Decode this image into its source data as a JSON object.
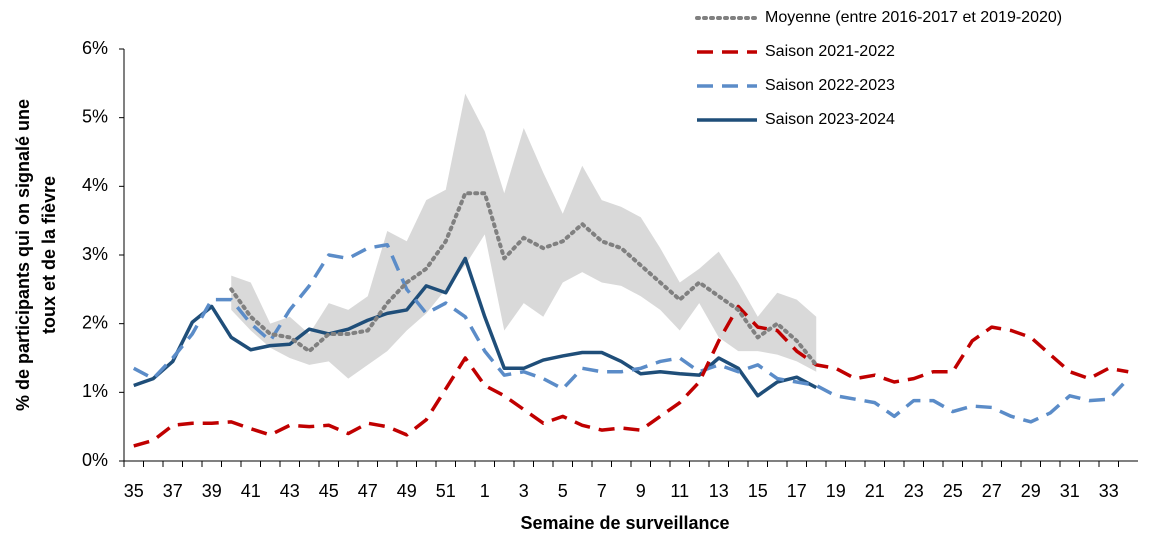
{
  "chart_data": {
    "type": "line",
    "ylabel": [
      "% de participants qui on signalé une",
      "toux et de la fièvre"
    ],
    "xlabel": "Semaine de surveillance",
    "categories": [
      "35",
      null,
      "37",
      null,
      "39",
      null,
      "41",
      null,
      "43",
      null,
      "45",
      null,
      "47",
      null,
      "49",
      null,
      "51",
      null,
      "1",
      null,
      "3",
      null,
      "5",
      null,
      "7",
      null,
      "9",
      null,
      "11",
      null,
      "13",
      null,
      "15",
      null,
      "17",
      null,
      "19",
      null,
      "21",
      null,
      "23",
      null,
      "25",
      null,
      "27",
      null,
      "29",
      null,
      "31",
      null,
      "33",
      null
    ],
    "ylim": [
      0,
      6
    ],
    "yticks": [
      {
        "value": 0,
        "label": "0%"
      },
      {
        "value": 1,
        "label": "1%"
      },
      {
        "value": 2,
        "label": "2%"
      },
      {
        "value": 3,
        "label": "3%"
      },
      {
        "value": 4,
        "label": "4%"
      },
      {
        "value": 5,
        "label": "5%"
      },
      {
        "value": 6,
        "label": "6%"
      }
    ],
    "range": {
      "color": "#d9d9d9",
      "high": [
        null,
        null,
        null,
        null,
        null,
        2.7,
        2.6,
        2.0,
        2.1,
        1.85,
        2.3,
        2.2,
        2.4,
        3.35,
        3.2,
        3.8,
        3.95,
        5.35,
        4.8,
        3.9,
        4.85,
        4.2,
        3.6,
        4.3,
        3.8,
        3.7,
        3.55,
        3.1,
        2.6,
        2.8,
        3.05,
        2.6,
        2.1,
        2.45,
        2.35,
        2.1,
        null,
        null,
        null,
        null,
        null,
        null,
        null,
        null,
        null,
        null,
        null,
        null,
        null,
        null,
        null,
        null
      ],
      "low": [
        null,
        null,
        null,
        null,
        null,
        2.2,
        1.9,
        1.65,
        1.5,
        1.4,
        1.45,
        1.2,
        1.4,
        1.6,
        1.9,
        2.15,
        2.5,
        2.85,
        3.3,
        1.9,
        2.3,
        2.1,
        2.6,
        2.75,
        2.6,
        2.55,
        2.4,
        2.2,
        1.9,
        2.3,
        1.8,
        1.6,
        1.6,
        1.55,
        1.45,
        1.3,
        null,
        null,
        null,
        null,
        null,
        null,
        null,
        null,
        null,
        null,
        null,
        null,
        null,
        null,
        null,
        null
      ]
    },
    "series": [
      {
        "name": "Moyenne (entre 2016-2017 et 2019-2020)",
        "color": "#808080",
        "line_style": "dotted",
        "values": [
          null,
          null,
          null,
          null,
          null,
          2.5,
          2.1,
          1.85,
          1.8,
          1.6,
          1.85,
          1.85,
          1.9,
          2.3,
          2.6,
          2.8,
          3.2,
          3.9,
          3.9,
          2.95,
          3.25,
          3.1,
          3.2,
          3.45,
          3.2,
          3.1,
          2.85,
          2.6,
          2.35,
          2.6,
          2.4,
          2.2,
          1.8,
          2.0,
          1.75,
          1.4,
          null,
          null,
          null,
          null,
          null,
          null,
          null,
          null,
          null,
          null,
          null,
          null,
          null,
          null,
          null,
          null
        ]
      },
      {
        "name": "Saison 2021-2022",
        "color": "#c00000",
        "line_style": "dashed",
        "values": [
          0.22,
          0.3,
          0.52,
          0.55,
          0.55,
          0.57,
          0.47,
          0.38,
          0.52,
          0.5,
          0.52,
          0.4,
          0.55,
          0.5,
          0.38,
          0.6,
          1.05,
          1.5,
          1.1,
          0.95,
          0.75,
          0.55,
          0.65,
          0.52,
          0.45,
          0.48,
          0.45,
          0.65,
          0.85,
          1.15,
          1.75,
          2.25,
          1.95,
          1.9,
          1.6,
          1.4,
          1.35,
          1.2,
          1.25,
          1.15,
          1.2,
          1.3,
          1.3,
          1.75,
          1.95,
          1.9,
          1.8,
          1.55,
          1.3,
          1.2,
          1.35,
          1.3
        ]
      },
      {
        "name": "Saison 2022-2023",
        "color": "#5b8cc8",
        "line_style": "dashed",
        "values": [
          1.35,
          1.2,
          1.5,
          1.85,
          2.35,
          2.35,
          2.0,
          1.75,
          2.2,
          2.55,
          3.0,
          2.95,
          3.1,
          3.15,
          2.5,
          2.15,
          2.3,
          2.1,
          1.6,
          1.25,
          1.3,
          1.2,
          1.05,
          1.35,
          1.3,
          1.3,
          1.35,
          1.45,
          1.5,
          1.3,
          1.4,
          1.3,
          1.4,
          1.2,
          1.15,
          1.1,
          0.95,
          0.9,
          0.85,
          0.65,
          0.88,
          0.88,
          0.72,
          0.8,
          0.78,
          0.65,
          0.57,
          0.7,
          0.95,
          0.88,
          0.9,
          1.2
        ]
      },
      {
        "name": "Saison 2023-2024",
        "color": "#1f4e79",
        "line_style": "solid",
        "values": [
          1.1,
          1.2,
          1.45,
          2.02,
          2.25,
          1.8,
          1.62,
          1.68,
          1.7,
          1.92,
          1.85,
          1.92,
          2.05,
          2.15,
          2.2,
          2.55,
          2.45,
          2.95,
          2.1,
          1.35,
          1.35,
          1.47,
          1.53,
          1.58,
          1.58,
          1.45,
          1.27,
          1.3,
          1.27,
          1.25,
          1.5,
          1.35,
          0.95,
          1.15,
          1.22,
          1.07,
          null,
          null,
          null,
          null,
          null,
          null,
          null,
          null,
          null,
          null,
          null,
          null,
          null,
          null,
          null,
          null
        ]
      }
    ]
  }
}
